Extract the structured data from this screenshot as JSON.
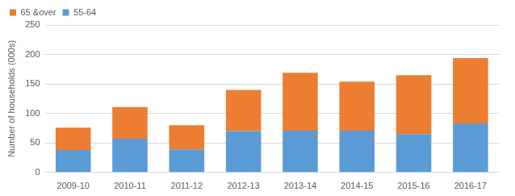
{
  "chart_data": {
    "type": "bar",
    "stacked": true,
    "y_label": "Number of households (000s)",
    "categories": [
      "2009-10",
      "2010-11",
      "2011-12",
      "2012-13",
      "2013-14",
      "2014-15",
      "2015-16",
      "2016-17"
    ],
    "series": [
      {
        "name": "55-64",
        "color": "#5b9bd5",
        "values": [
          38,
          57,
          39,
          70,
          71,
          71,
          65,
          83
        ]
      },
      {
        "name": "65 &over",
        "color": "#ed7d31",
        "values": [
          38,
          54,
          41,
          70,
          98,
          83,
          100,
          111
        ]
      }
    ],
    "ylim": [
      0,
      250
    ],
    "yticks": [
      0,
      50,
      100,
      150,
      200,
      250
    ],
    "grid": true,
    "legend": "upper-left"
  }
}
